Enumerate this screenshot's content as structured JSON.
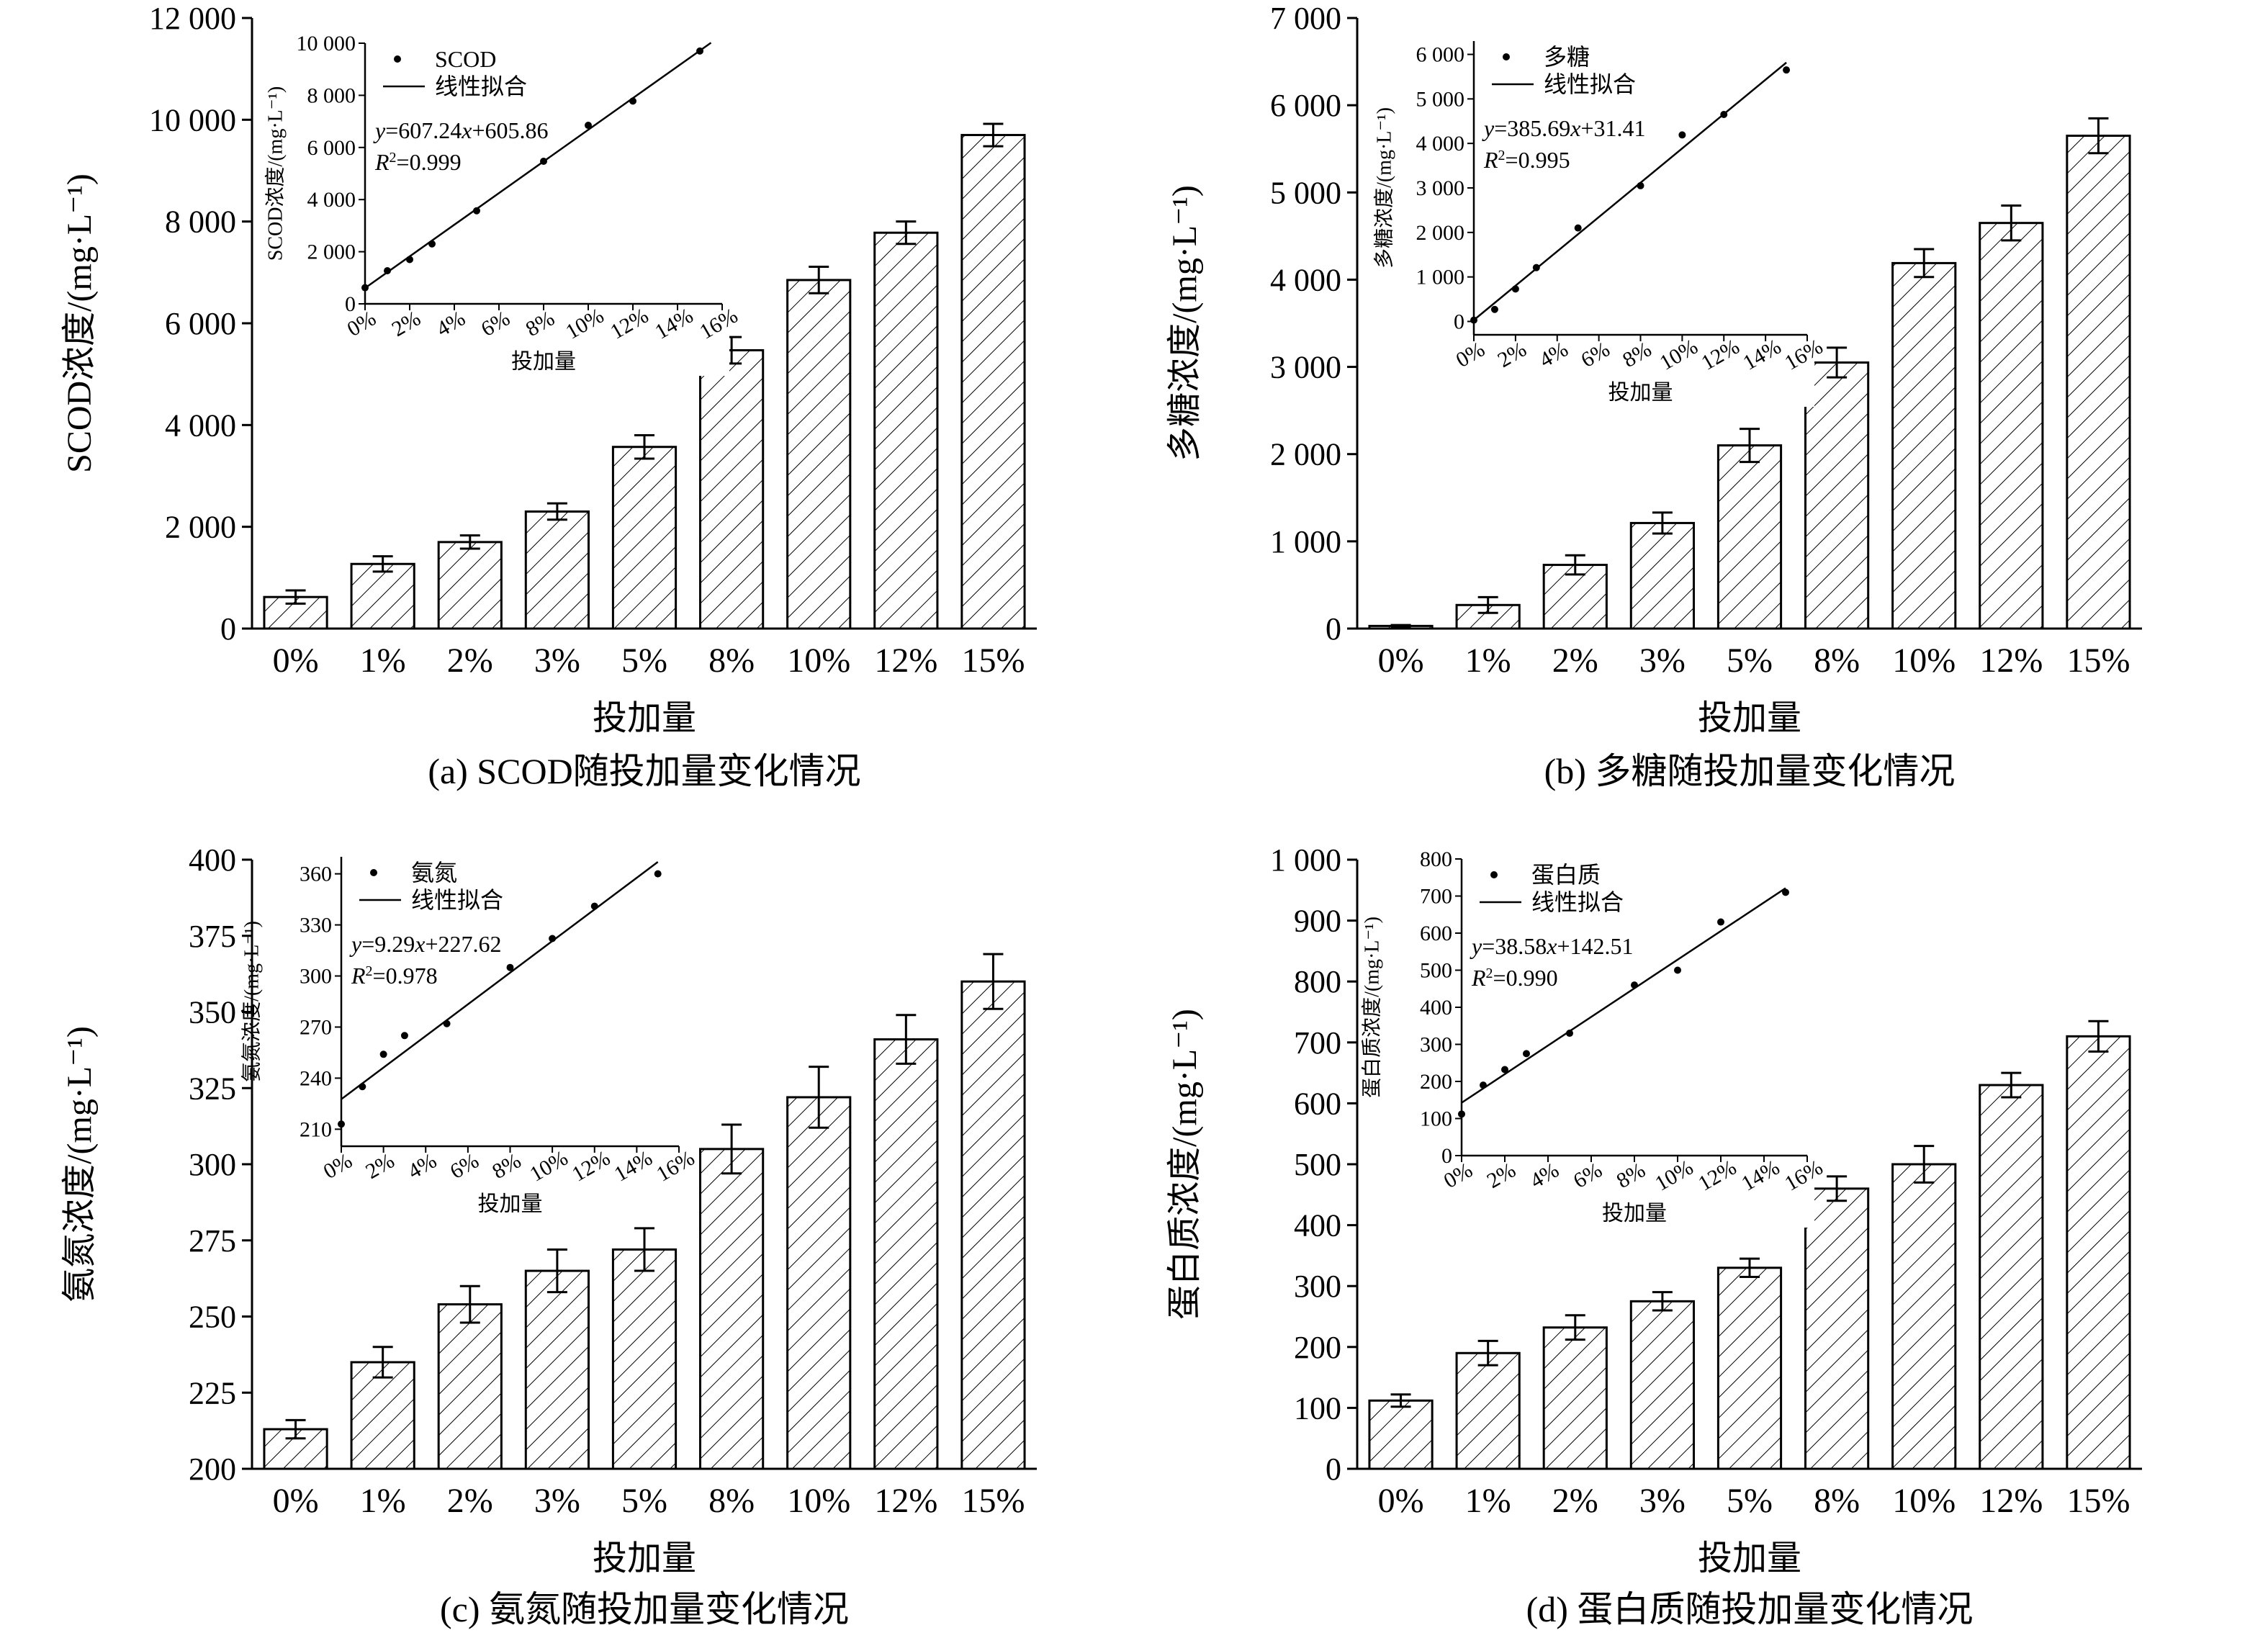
{
  "figure": {
    "categories": [
      "0%",
      "1%",
      "2%",
      "3%",
      "5%",
      "8%",
      "10%",
      "12%",
      "15%"
    ],
    "inset_x_ticks": [
      "0%",
      "2%",
      "4%",
      "6%",
      "8%",
      "10%",
      "12%",
      "14%",
      "16%"
    ],
    "inset_x_values": [
      0,
      1,
      2,
      3,
      5,
      8,
      10,
      12,
      15
    ],
    "inset_x_range": [
      0,
      16
    ],
    "bar_fill": "hatched",
    "line_color": "#000000"
  },
  "chart_data": [
    {
      "type": "bar",
      "caption": "(a) SCOD随投加量变化情况",
      "xlabel": "投加量",
      "ylabel": "SCOD浓度/(mg·L⁻¹)",
      "ylim": [
        0,
        12000
      ],
      "yticks": [
        0,
        2000,
        4000,
        6000,
        8000,
        10000,
        12000
      ],
      "ytick_labels": [
        "0",
        "2 000",
        "4 000",
        "6 000",
        "8 000",
        "10 000",
        "12 000"
      ],
      "categories": [
        "0%",
        "1%",
        "2%",
        "3%",
        "5%",
        "8%",
        "10%",
        "12%",
        "15%"
      ],
      "values": [
        620,
        1270,
        1700,
        2300,
        3570,
        5470,
        6850,
        7780,
        9700
      ],
      "errors": [
        130,
        150,
        130,
        160,
        230,
        260,
        260,
        220,
        220
      ],
      "inset": {
        "type": "scatter+line",
        "xlabel": "投加量",
        "ylabel": "SCOD浓度/(mg·L⁻¹)",
        "ylim": [
          0,
          10000
        ],
        "yticks": [
          0,
          2000,
          4000,
          6000,
          8000,
          10000
        ],
        "ytick_labels": [
          "0",
          "2 000",
          "4 000",
          "6 000",
          "8 000",
          "10 000"
        ],
        "points_y": [
          620,
          1270,
          1700,
          2300,
          3570,
          5470,
          6850,
          7780,
          9700
        ],
        "fit": {
          "slope": 607.24,
          "intercept": 605.86,
          "x_range": [
            0,
            15.5
          ]
        },
        "legend": {
          "scatter": "SCOD",
          "line": "线性拟合"
        },
        "equation": {
          "lhs": "y",
          "coef": "=607.24",
          "var": "x",
          "rest": "+605.86"
        },
        "r2": {
          "sym": "R",
          "sup": "2",
          "val": "=0.999"
        }
      }
    },
    {
      "type": "bar",
      "caption": "(b) 多糖随投加量变化情况",
      "xlabel": "投加量",
      "ylabel": "多糖浓度/(mg·L⁻¹)",
      "ylim": [
        0,
        7000
      ],
      "yticks": [
        0,
        1000,
        2000,
        3000,
        4000,
        5000,
        6000,
        7000
      ],
      "ytick_labels": [
        "0",
        "1 000",
        "2 000",
        "3 000",
        "4 000",
        "5 000",
        "6 000",
        "7 000"
      ],
      "categories": [
        "0%",
        "1%",
        "2%",
        "3%",
        "5%",
        "8%",
        "10%",
        "12%",
        "15%"
      ],
      "values": [
        30,
        270,
        730,
        1210,
        2100,
        3050,
        4190,
        4650,
        5650
      ],
      "errors": [
        10,
        90,
        110,
        120,
        190,
        170,
        160,
        200,
        200
      ],
      "inset": {
        "type": "scatter+line",
        "xlabel": "投加量",
        "ylabel": "多糖浓度/(mg·L⁻¹)",
        "ylim": [
          -300,
          6300
        ],
        "yticks": [
          0,
          1000,
          2000,
          3000,
          4000,
          5000,
          6000
        ],
        "ytick_labels": [
          "0",
          "1 000",
          "2 000",
          "3 000",
          "4 000",
          "5 000",
          "6 000"
        ],
        "points_y": [
          30,
          270,
          730,
          1210,
          2100,
          3050,
          4190,
          4650,
          5650
        ],
        "fit": {
          "slope": 385.69,
          "intercept": 31.41,
          "x_range": [
            0,
            15
          ]
        },
        "legend": {
          "scatter": "多糖",
          "line": "线性拟合"
        },
        "equation": {
          "lhs": "y",
          "coef": "=385.69",
          "var": "x",
          "rest": "+31.41"
        },
        "r2": {
          "sym": "R",
          "sup": "2",
          "val": "=0.995"
        }
      }
    },
    {
      "type": "bar",
      "caption": "(c) 氨氮随投加量变化情况",
      "xlabel": "投加量",
      "ylabel": "氨氮浓度/(mg·L⁻¹)",
      "ylim": [
        200,
        400
      ],
      "yticks": [
        200,
        225,
        250,
        275,
        300,
        325,
        350,
        375,
        400
      ],
      "ytick_labels": [
        "200",
        "225",
        "250",
        "275",
        "300",
        "325",
        "350",
        "375",
        "400"
      ],
      "categories": [
        "0%",
        "1%",
        "2%",
        "3%",
        "5%",
        "8%",
        "10%",
        "12%",
        "15%"
      ],
      "values": [
        213,
        235,
        254,
        265,
        272,
        305,
        322,
        341,
        360
      ],
      "errors": [
        3,
        5,
        6,
        7,
        7,
        8,
        10,
        8,
        9
      ],
      "inset": {
        "type": "scatter+line",
        "xlabel": "投加量",
        "ylabel": "氨氮浓度/(mg·L⁻¹)",
        "ylim": [
          200,
          370
        ],
        "yticks": [
          210,
          240,
          270,
          300,
          330,
          360
        ],
        "ytick_labels": [
          "210",
          "240",
          "270",
          "300",
          "330",
          "360"
        ],
        "points_y": [
          213,
          235,
          254,
          265,
          272,
          305,
          322,
          341,
          360
        ],
        "fit": {
          "slope": 9.29,
          "intercept": 227.62,
          "x_range": [
            0,
            15
          ]
        },
        "legend": {
          "scatter": "氨氮",
          "line": "线性拟合"
        },
        "equation": {
          "lhs": "y",
          "coef": "=9.29",
          "var": "x",
          "rest": "+227.62"
        },
        "r2": {
          "sym": "R",
          "sup": "2",
          "val": "=0.978"
        }
      }
    },
    {
      "type": "bar",
      "caption": "(d) 蛋白质随投加量变化情况",
      "xlabel": "投加量",
      "ylabel": "蛋白质浓度/(mg·L⁻¹)",
      "ylim": [
        0,
        1000
      ],
      "yticks": [
        0,
        100,
        200,
        300,
        400,
        500,
        600,
        700,
        800,
        900,
        1000
      ],
      "ytick_labels": [
        "0",
        "100",
        "200",
        "300",
        "400",
        "500",
        "600",
        "700",
        "800",
        "900",
        "1 000"
      ],
      "categories": [
        "0%",
        "1%",
        "2%",
        "3%",
        "5%",
        "8%",
        "10%",
        "12%",
        "15%"
      ],
      "values": [
        112,
        190,
        232,
        275,
        330,
        460,
        500,
        630,
        710
      ],
      "errors": [
        10,
        20,
        20,
        15,
        15,
        20,
        30,
        20,
        25
      ],
      "inset": {
        "type": "scatter+line",
        "xlabel": "投加量",
        "ylabel": "蛋白质浓度/(mg·L⁻¹)",
        "ylim": [
          0,
          800
        ],
        "yticks": [
          0,
          100,
          200,
          300,
          400,
          500,
          600,
          700,
          800
        ],
        "ytick_labels": [
          "0",
          "100",
          "200",
          "300",
          "400",
          "500",
          "600",
          "700",
          "800"
        ],
        "points_y": [
          112,
          190,
          232,
          275,
          330,
          460,
          500,
          630,
          710
        ],
        "fit": {
          "slope": 38.58,
          "intercept": 142.51,
          "x_range": [
            0,
            15
          ]
        },
        "legend": {
          "scatter": "蛋白质",
          "line": "线性拟合"
        },
        "equation": {
          "lhs": "y",
          "coef": "=38.58",
          "var": "x",
          "rest": "+142.51"
        },
        "r2": {
          "sym": "R",
          "sup": "2",
          "val": "=0.990"
        }
      }
    }
  ]
}
